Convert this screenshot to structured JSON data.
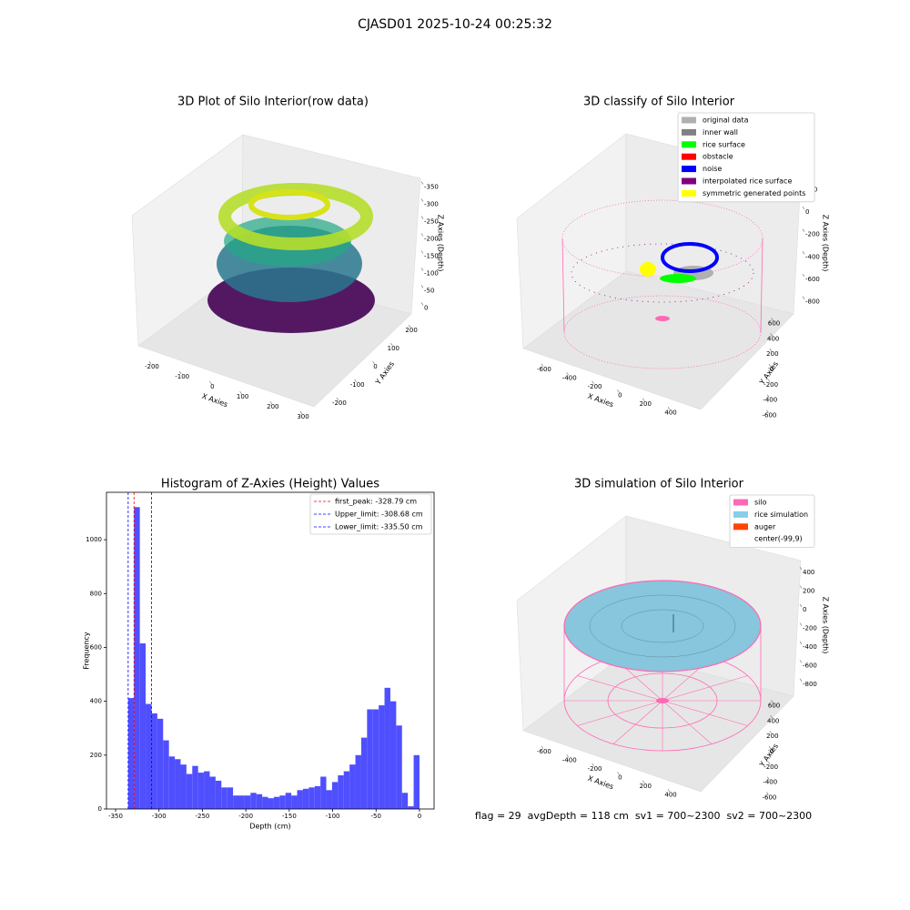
{
  "title": "CJASD01 2025-10-24 00:25:32",
  "chart_data": [
    {
      "type": "scatter3d",
      "title": "3D Plot of Silo Interior(row data)",
      "xlabel": "X Axies",
      "ylabel": "Y Axies",
      "zlabel": "Z Axies (Depth)",
      "xlim": [
        -245,
        336
      ],
      "ylim": [
        -250,
        250
      ],
      "zlim": [
        -370,
        20
      ],
      "xticks": [
        -200,
        -100,
        0,
        100,
        200,
        300
      ],
      "yticks": [
        -200,
        -100,
        0,
        100,
        200
      ],
      "zticks": [
        0,
        -50,
        -100,
        -150,
        -200,
        -250,
        -300,
        -350
      ]
    },
    {
      "type": "scatter3d",
      "title": "3D classify of Silo Interior",
      "xlabel": "X Axies",
      "ylabel": "Y Axies",
      "zlabel": "Z Axies (Depth)",
      "xlim": [
        -700,
        500
      ],
      "ylim": [
        -700,
        700
      ],
      "zlim": [
        -900,
        300
      ],
      "xticks": [
        -600,
        -400,
        -200,
        0,
        200,
        400
      ],
      "yticks": [
        -600,
        -400,
        -200,
        0,
        200,
        400,
        600
      ],
      "zticks": [
        200,
        0,
        -200,
        -400,
        -600,
        -800
      ],
      "legend": [
        {
          "name": "original data",
          "color": "#b0b0b0"
        },
        {
          "name": "inner wall",
          "color": "#808080"
        },
        {
          "name": "rice surface",
          "color": "#00ff00"
        },
        {
          "name": "obstacle",
          "color": "#ff0000"
        },
        {
          "name": "noise",
          "color": "#0000ff"
        },
        {
          "name": "interpolated rice surface",
          "color": "#800080"
        },
        {
          "name": "symmetric generated points",
          "color": "#ffff00"
        }
      ]
    },
    {
      "type": "histogram",
      "title": "Histogram of Z-Axies (Height) Values",
      "xlabel": "Depth (cm)",
      "ylabel": "Frequency",
      "color": "#4f4fff",
      "bins": [
        -335.5,
        -328.79,
        -322.08,
        -315.37,
        -308.66,
        -301.95,
        -295.24,
        -288.53,
        -281.82,
        -275.11,
        -268.4,
        -261.69,
        -254.98,
        -248.27,
        -241.56,
        -234.85,
        -228.14,
        -221.43,
        -214.72,
        -208.01,
        -201.3,
        -194.59,
        -187.88,
        -181.17,
        -174.46,
        -167.75,
        -161.04,
        -154.33,
        -147.62,
        -140.91,
        -134.2,
        -127.49,
        -120.78,
        -114.07,
        -107.36,
        -100.65,
        -93.94,
        -87.23,
        -80.52,
        -73.81,
        -67.1,
        -60.39,
        -53.68,
        -46.97,
        -40.26,
        -33.55,
        -26.84,
        -20.13,
        -13.42,
        -6.71,
        0
      ],
      "values": [
        412,
        1121,
        615,
        390,
        355,
        335,
        255,
        195,
        185,
        165,
        130,
        160,
        135,
        140,
        120,
        105,
        80,
        80,
        50,
        50,
        50,
        60,
        55,
        45,
        40,
        45,
        50,
        60,
        50,
        70,
        75,
        80,
        85,
        120,
        70,
        100,
        125,
        140,
        165,
        200,
        265,
        370,
        370,
        385,
        450,
        400,
        310,
        60,
        10,
        200
      ],
      "xlim": [
        -360.5,
        16.8
      ],
      "ylim": [
        0,
        1176
      ],
      "xticks": [
        -350,
        -300,
        -250,
        -200,
        -150,
        -100,
        -50,
        0
      ],
      "yticks": [
        0,
        200,
        400,
        600,
        800,
        1000
      ],
      "vlines": [
        {
          "name": "first_peak: -328.79 cm",
          "value": -328.79,
          "color": "#ff0000"
        },
        {
          "name": "Upper_limit: -308.68 cm",
          "value": -308.68,
          "color": "#0000ff"
        },
        {
          "name": "Lower_limit: -335.50 cm",
          "value": -335.5,
          "color": "#0000ff"
        }
      ]
    },
    {
      "type": "surface3d",
      "title": "3D simulation of Silo Interior",
      "xlabel": "X Axies",
      "ylabel": "Y Axies",
      "zlabel": "Z Axies (Depth)",
      "xlim": [
        -700,
        500
      ],
      "ylim": [
        -700,
        700
      ],
      "zlim": [
        -900,
        500
      ],
      "xticks": [
        -600,
        -400,
        -200,
        0,
        200,
        400
      ],
      "yticks": [
        -600,
        -400,
        -200,
        0,
        200,
        400,
        600
      ],
      "zticks": [
        400,
        200,
        0,
        -200,
        -400,
        -600,
        -800
      ],
      "legend": [
        {
          "name": "silo",
          "color": "#ff69b4"
        },
        {
          "name": "rice simulation",
          "color": "#87ceeb"
        },
        {
          "name": "auger",
          "color": "#ff4500"
        },
        {
          "name": "center(-99,9)",
          "color": "#ffffff"
        }
      ],
      "annotation": "flag = 29  avgDepth = 118 cm  sv1 = 700~2300  sv2 = 700~2300"
    }
  ]
}
